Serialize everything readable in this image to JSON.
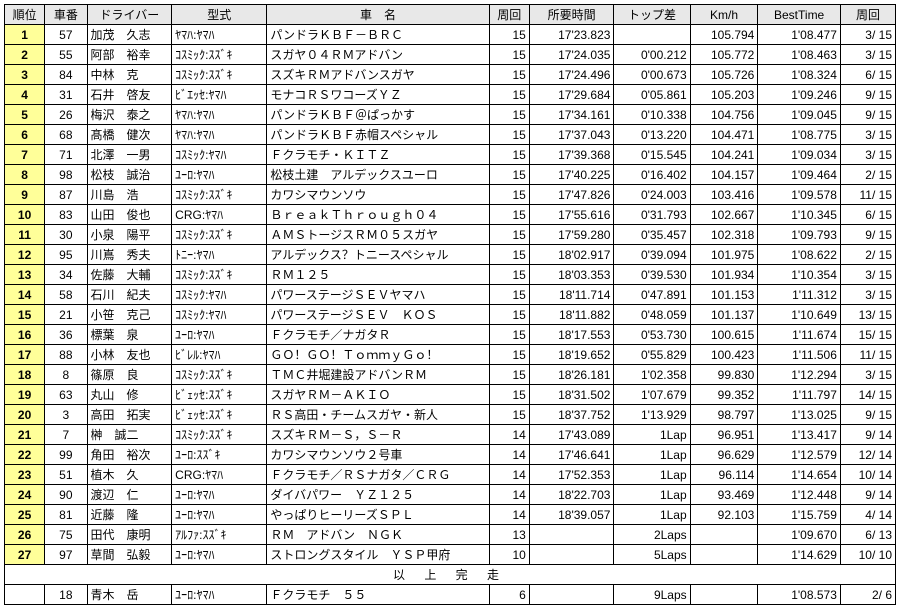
{
  "headers": [
    "順位",
    "車番",
    "ドライバー",
    "型式",
    "車　名",
    "周回",
    "所要時間",
    "トップ差",
    "Km/h",
    "BestTime",
    "周回"
  ],
  "finisher_text": "以 上 完 走",
  "rows": [
    {
      "rank": "1",
      "no": "57",
      "driver": "加茂　久志",
      "type": "ﾔﾏﾊ:ﾔﾏﾊ",
      "name": "パンドラＫＢＦ－ＢＲＣ",
      "laps": "15",
      "time": "17'23.823",
      "gap": "",
      "kmh": "105.794",
      "best": "1'08.477",
      "bestlap": "3/ 15"
    },
    {
      "rank": "2",
      "no": "55",
      "driver": "阿部　裕幸",
      "type": "ｺｽﾐｯｸ:ｽｽﾞｷ",
      "name": "スガヤ０４ＲＭアドバン",
      "laps": "15",
      "time": "17'24.035",
      "gap": "0'00.212",
      "kmh": "105.772",
      "best": "1'08.463",
      "bestlap": "3/ 15"
    },
    {
      "rank": "3",
      "no": "84",
      "driver": "中林　克",
      "type": "ｺｽﾐｯｸ:ｽｽﾞｷ",
      "name": "スズキＲＭアドバンスガヤ",
      "laps": "15",
      "time": "17'24.496",
      "gap": "0'00.673",
      "kmh": "105.726",
      "best": "1'08.324",
      "bestlap": "6/ 15"
    },
    {
      "rank": "4",
      "no": "31",
      "driver": "石井　啓友",
      "type": "ﾋﾞｴｯｾ:ﾔﾏﾊ",
      "name": "モナコＲＳワコーズＹＺ",
      "laps": "15",
      "time": "17'29.684",
      "gap": "0'05.861",
      "kmh": "105.203",
      "best": "1'09.246",
      "bestlap": "9/ 15"
    },
    {
      "rank": "5",
      "no": "26",
      "driver": "梅沢　泰之",
      "type": "ﾔﾏﾊ:ﾔﾏﾊ",
      "name": "パンドラＫＢＦ＠ぱっかす",
      "laps": "15",
      "time": "17'34.161",
      "gap": "0'10.338",
      "kmh": "104.756",
      "best": "1'09.045",
      "bestlap": "9/ 15"
    },
    {
      "rank": "6",
      "no": "68",
      "driver": "髙橋　健次",
      "type": "ﾔﾏﾊ:ﾔﾏﾊ",
      "name": "パンドラＫＢＦ赤帽スペシャル",
      "laps": "15",
      "time": "17'37.043",
      "gap": "0'13.220",
      "kmh": "104.471",
      "best": "1'08.775",
      "bestlap": "3/ 15"
    },
    {
      "rank": "7",
      "no": "71",
      "driver": "北澤　一男",
      "type": "ｺｽﾐｯｸ:ﾔﾏﾊ",
      "name": "Ｆクラモチ・ＫＩＴＺ",
      "laps": "15",
      "time": "17'39.368",
      "gap": "0'15.545",
      "kmh": "104.241",
      "best": "1'09.034",
      "bestlap": "3/ 15"
    },
    {
      "rank": "8",
      "no": "98",
      "driver": "松枝　誠治",
      "type": "ﾕｰﾛ:ﾔﾏﾊ",
      "name": "松枝土建　アルデックスユーロ",
      "laps": "15",
      "time": "17'40.225",
      "gap": "0'16.402",
      "kmh": "104.157",
      "best": "1'09.464",
      "bestlap": "2/ 15"
    },
    {
      "rank": "9",
      "no": "87",
      "driver": "川島　浩",
      "type": "ｺｽﾐｯｸ:ｽｽﾞｷ",
      "name": "カワシマウンソウ",
      "laps": "15",
      "time": "17'47.826",
      "gap": "0'24.003",
      "kmh": "103.416",
      "best": "1'09.578",
      "bestlap": "11/ 15"
    },
    {
      "rank": "10",
      "no": "83",
      "driver": "山田　俊也",
      "type": "CRG:ﾔﾏﾊ",
      "name": "ＢｒｅａｋＴｈｒｏｕｇｈ０４",
      "laps": "15",
      "time": "17'55.616",
      "gap": "0'31.793",
      "kmh": "102.667",
      "best": "1'10.345",
      "bestlap": "6/ 15"
    },
    {
      "rank": "11",
      "no": "30",
      "driver": "小泉　陽平",
      "type": "ｺｽﾐｯｸ:ｽｽﾞｷ",
      "name": "ＡＭＳトージスＲＭ０５スガヤ",
      "laps": "15",
      "time": "17'59.280",
      "gap": "0'35.457",
      "kmh": "102.318",
      "best": "1'09.793",
      "bestlap": "9/ 15"
    },
    {
      "rank": "12",
      "no": "95",
      "driver": "川嶌　秀夫",
      "type": "ﾄﾆｰ:ﾔﾏﾊ",
      "name": "アルデックス？トニースペシャル",
      "laps": "15",
      "time": "18'02.917",
      "gap": "0'39.094",
      "kmh": "101.975",
      "best": "1'08.622",
      "bestlap": "2/ 15"
    },
    {
      "rank": "13",
      "no": "34",
      "driver": "佐藤　大輔",
      "type": "ｺｽﾐｯｸ:ｽｽﾞｷ",
      "name": "ＲＭ１２５",
      "laps": "15",
      "time": "18'03.353",
      "gap": "0'39.530",
      "kmh": "101.934",
      "best": "1'10.354",
      "bestlap": "3/ 15"
    },
    {
      "rank": "14",
      "no": "58",
      "driver": "石川　紀夫",
      "type": "ｺｽﾐｯｸ:ﾔﾏﾊ",
      "name": "パワーステージＳＥＶヤマハ",
      "laps": "15",
      "time": "18'11.714",
      "gap": "0'47.891",
      "kmh": "101.153",
      "best": "1'11.312",
      "bestlap": "3/ 15"
    },
    {
      "rank": "15",
      "no": "21",
      "driver": "小笹　克己",
      "type": "ｺｽﾐｯｸ:ﾔﾏﾊ",
      "name": "パワーステージＳＥＶ　ＫＯＳ",
      "laps": "15",
      "time": "18'11.882",
      "gap": "0'48.059",
      "kmh": "101.137",
      "best": "1'10.649",
      "bestlap": "13/ 15"
    },
    {
      "rank": "16",
      "no": "36",
      "driver": "標葉　泉",
      "type": "ﾕｰﾛ:ﾔﾏﾊ",
      "name": "Ｆクラモチ／ナガタＲ",
      "laps": "15",
      "time": "18'17.553",
      "gap": "0'53.730",
      "kmh": "100.615",
      "best": "1'11.674",
      "bestlap": "15/ 15"
    },
    {
      "rank": "17",
      "no": "88",
      "driver": "小林　友也",
      "type": "ﾋﾞﾚﾙ:ﾔﾏﾊ",
      "name": "ＧＯ！ＧＯ！ＴｏｍｍｙＧｏ！",
      "laps": "15",
      "time": "18'19.652",
      "gap": "0'55.829",
      "kmh": "100.423",
      "best": "1'11.506",
      "bestlap": "11/ 15"
    },
    {
      "rank": "18",
      "no": "8",
      "driver": "篠原　良",
      "type": "ｺｽﾐｯｸ:ｽｽﾞｷ",
      "name": "ＴＭＣ井堀建設アドバンＲＭ",
      "laps": "15",
      "time": "18'26.181",
      "gap": "1'02.358",
      "kmh": "99.830",
      "best": "1'12.294",
      "bestlap": "3/ 15"
    },
    {
      "rank": "19",
      "no": "63",
      "driver": "丸山　修",
      "type": "ﾋﾞｪｯｾ:ｽｽﾞｷ",
      "name": "スガヤＲＭ－ＡＫＩＯ",
      "laps": "15",
      "time": "18'31.502",
      "gap": "1'07.679",
      "kmh": "99.352",
      "best": "1'11.797",
      "bestlap": "14/ 15"
    },
    {
      "rank": "20",
      "no": "3",
      "driver": "高田　拓実",
      "type": "ﾋﾞｪｯｾ:ｽｽﾞｷ",
      "name": "ＲＳ高田・チームスガヤ・新人",
      "laps": "15",
      "time": "18'37.752",
      "gap": "1'13.929",
      "kmh": "98.797",
      "best": "1'13.025",
      "bestlap": "9/ 15"
    },
    {
      "rank": "21",
      "no": "7",
      "driver": "榊　誠二",
      "type": "ｺｽﾐｯｸ:ｽｽﾞｷ",
      "name": "スズキＲＭ－Ｓ，Ｓ－Ｒ",
      "laps": "14",
      "time": "17'43.089",
      "gap": "1Lap",
      "kmh": "96.951",
      "best": "1'13.417",
      "bestlap": "9/ 14"
    },
    {
      "rank": "22",
      "no": "99",
      "driver": "角田　裕次",
      "type": "ﾕｰﾛ:ｽｽﾞｷ",
      "name": "カワシマウンソウ２号車",
      "laps": "14",
      "time": "17'46.641",
      "gap": "1Lap",
      "kmh": "96.629",
      "best": "1'12.579",
      "bestlap": "12/ 14"
    },
    {
      "rank": "23",
      "no": "51",
      "driver": "植木　久",
      "type": "CRG:ﾔﾏﾊ",
      "name": "Ｆクラモチ／ＲＳナガタ／ＣＲＧ",
      "laps": "14",
      "time": "17'52.353",
      "gap": "1Lap",
      "kmh": "96.114",
      "best": "1'14.654",
      "bestlap": "10/ 14"
    },
    {
      "rank": "24",
      "no": "90",
      "driver": "渡辺　仁",
      "type": "ﾕｰﾛ:ﾔﾏﾊ",
      "name": "ダイバパワー　ＹＺ１２５",
      "laps": "14",
      "time": "18'22.703",
      "gap": "1Lap",
      "kmh": "93.469",
      "best": "1'12.448",
      "bestlap": "9/ 14"
    },
    {
      "rank": "25",
      "no": "81",
      "driver": "近藤　隆",
      "type": "ﾕｰﾛ:ﾔﾏﾊ",
      "name": "やっぱりヒーリーズＳＰＬ",
      "laps": "14",
      "time": "18'39.057",
      "gap": "1Lap",
      "kmh": "92.103",
      "best": "1'15.759",
      "bestlap": "4/ 14"
    },
    {
      "rank": "26",
      "no": "75",
      "driver": "田代　康明",
      "type": "ｱﾙﾌｧ:ｽｽﾞｷ",
      "name": "ＲＭ　アドバン　ＮＧＫ",
      "laps": "13",
      "time": "",
      "gap": "2Laps",
      "kmh": "",
      "best": "1'09.670",
      "bestlap": "6/ 13"
    },
    {
      "rank": "27",
      "no": "97",
      "driver": "草間　弘毅",
      "type": "ﾕｰﾛ:ﾔﾏﾊ",
      "name": "ストロングスタイル　ＹＳＰ甲府",
      "laps": "10",
      "time": "",
      "gap": "5Laps",
      "kmh": "",
      "best": "1'14.629",
      "bestlap": "10/ 10"
    }
  ],
  "dnf_rows": [
    {
      "rank": "",
      "no": "18",
      "driver": "青木　岳",
      "type": "ﾕｰﾛ:ﾔﾏﾊ",
      "name": "Ｆクラモチ　５５",
      "laps": "6",
      "time": "",
      "gap": "9Laps",
      "kmh": "",
      "best": "1'08.573",
      "bestlap": "2/ 6"
    }
  ]
}
